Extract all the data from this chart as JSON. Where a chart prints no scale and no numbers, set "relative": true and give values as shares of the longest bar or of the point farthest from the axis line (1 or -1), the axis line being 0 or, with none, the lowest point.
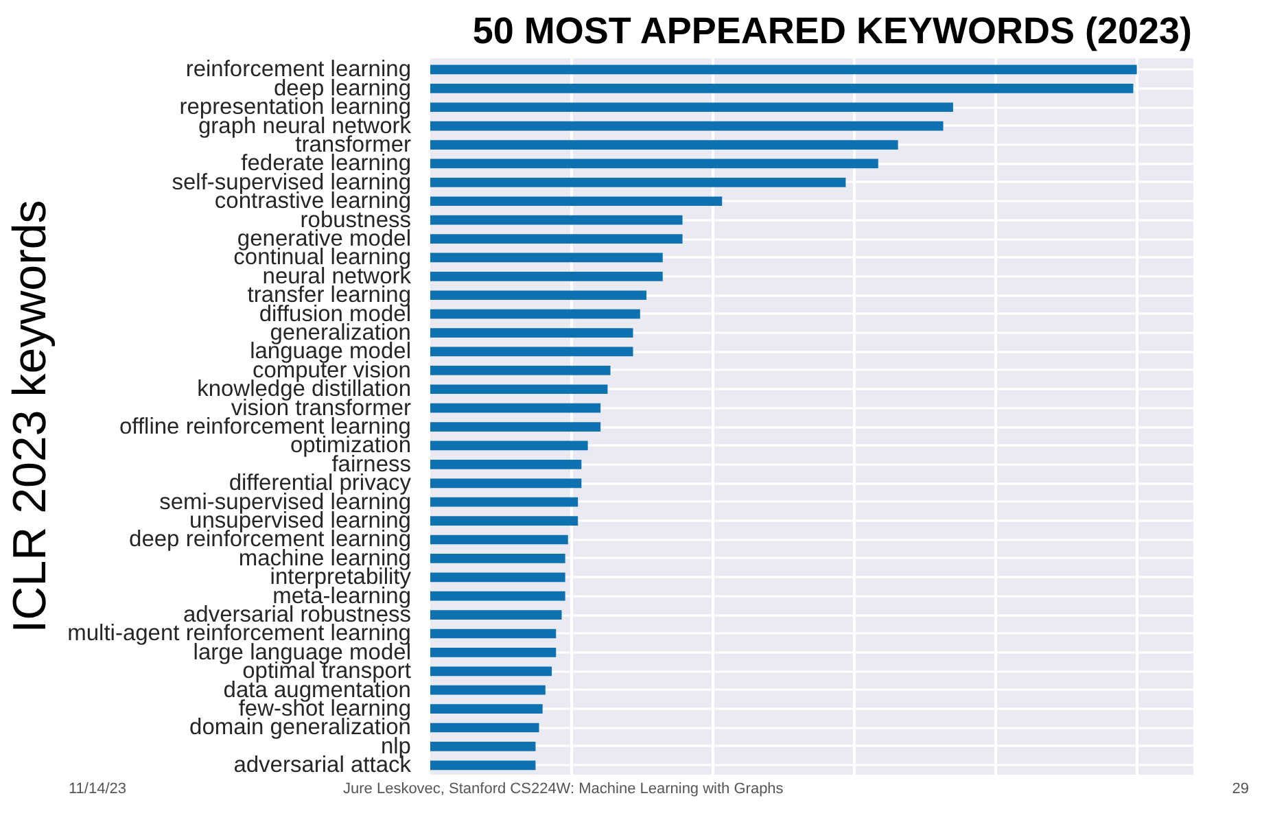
{
  "chart_data": {
    "type": "bar",
    "orientation": "horizontal",
    "relative": true,
    "title": "50 MOST APPEARED KEYWORDS (2023)",
    "ylabel": "ICLR 2023 keywords",
    "categories": [
      "reinforcement learning",
      "deep learning",
      "representation learning",
      "graph neural network",
      "transformer",
      "federate learning",
      "self-supervised learning",
      "contrastive learning",
      "robustness",
      "generative model",
      "continual learning",
      "neural network",
      "transfer learning",
      "diffusion model",
      "generalization",
      "language model",
      "computer vision",
      "knowledge distillation",
      "vision transformer",
      "offline reinforcement learning",
      "optimization",
      "fairness",
      "differential privacy",
      "semi-supervised learning",
      "unsupervised learning",
      "deep reinforcement learning",
      "machine learning",
      "interpretability",
      "meta-learning",
      "adversarial robustness",
      "multi-agent reinforcement learning",
      "large language model",
      "optimal transport",
      "data augmentation",
      "few-shot learning",
      "domain generalization",
      "nlp",
      "adversarial attack"
    ],
    "values": [
      1,
      0.995,
      0.74,
      0.726,
      0.662,
      0.634,
      0.588,
      0.413,
      0.357,
      0.357,
      0.329,
      0.329,
      0.306,
      0.297,
      0.287,
      0.287,
      0.255,
      0.251,
      0.241,
      0.241,
      0.223,
      0.214,
      0.214,
      0.209,
      0.209,
      0.195,
      0.191,
      0.191,
      0.191,
      0.186,
      0.178,
      0.178,
      0.172,
      0.163,
      0.159,
      0.154,
      0.149,
      0.149
    ],
    "color": "#0f72b0",
    "grid": true,
    "annotations": [
      "11/14/23",
      "Jure Leskovec, Stanford CS224W: Machine Learning with Graphs",
      "29"
    ]
  }
}
